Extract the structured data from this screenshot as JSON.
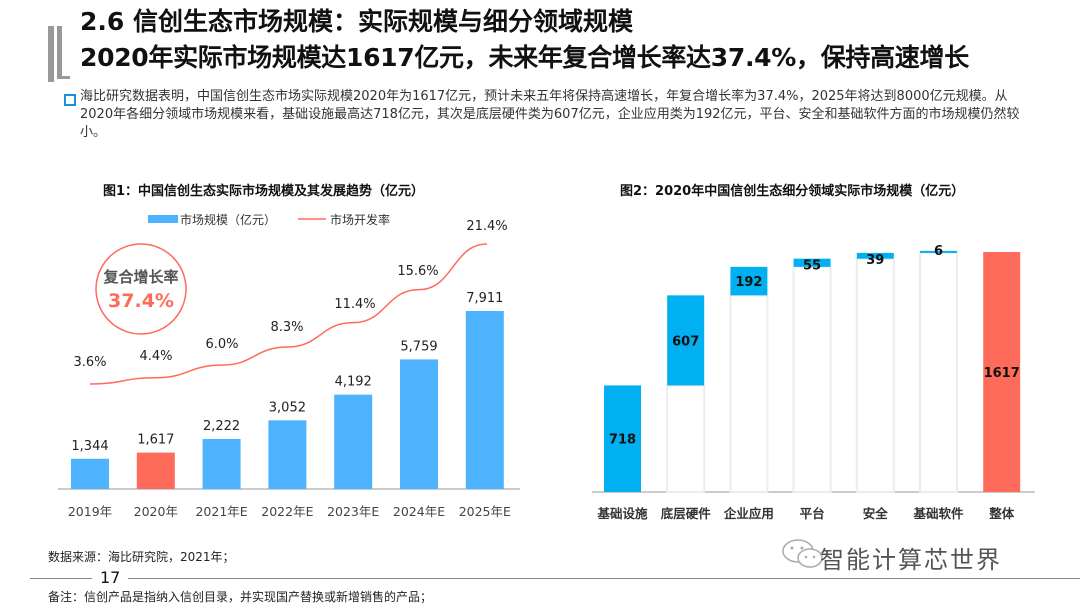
{
  "header": {
    "title_line1": "2.6 信创生态市场规模：实际规模与细分领域规模",
    "title_line2": "2020年实际市场规模达1617亿元，未来年复合增长率达37.4%，保持高速增长"
  },
  "summary": "海比研究数据表明，中国信创生态市场实际规模2020年为1617亿元，预计未来五年将保持高速增长，年复合增长率为37.4%，2025年将达到8000亿元规模。从2020年各细分领域市场规模来看，基础设施最高达718亿元，其次是底层硬件类为607亿元，企业应用类为192亿元，平台、安全和基础软件方面的市场规模仍然较小。",
  "colors": {
    "bar": "#4db3ff",
    "highlight": "#ff6b5a",
    "line": "#ff6b5a",
    "waterfall": "#00b0f0",
    "bullet": "#1a8fe0"
  },
  "chart_data": [
    {
      "type": "bar",
      "title": "图1：中国信创生态实际市场规模及其发展趋势（亿元）",
      "categories": [
        "2019年",
        "2020年",
        "2021年E",
        "2022年E",
        "2023年E",
        "2024年E",
        "2025年E"
      ],
      "series": [
        {
          "name": "市场规模（亿元）",
          "type": "bar",
          "values": [
            1344,
            1617,
            2222,
            3052,
            4192,
            5759,
            7911
          ],
          "labels": [
            "1,344",
            "1,617",
            "2,222",
            "3,052",
            "4,192",
            "5,759",
            "7,911"
          ],
          "highlight_index": 1
        },
        {
          "name": "市场开发率",
          "type": "line",
          "values": [
            3.6,
            4.4,
            6.0,
            8.3,
            11.4,
            15.6,
            21.4
          ],
          "labels": [
            "3.6%",
            "4.4%",
            "6.0%",
            "8.3%",
            "11.4%",
            "15.6%",
            "21.4%"
          ]
        }
      ],
      "annotation": {
        "label": "复合增长率",
        "value": "37.4%"
      },
      "legend_position": "top",
      "grid": false
    },
    {
      "type": "bar",
      "subtype": "waterfall",
      "title": "图2：2020年中国信创生态细分领域实际市场规模（亿元）",
      "categories": [
        "基础设施",
        "底层硬件",
        "企业应用",
        "平台",
        "安全",
        "基础软件",
        "整体"
      ],
      "values": [
        718,
        607,
        192,
        55,
        39,
        6,
        1617
      ],
      "labels": [
        "718",
        "607",
        "192",
        "55",
        "39",
        "6",
        "1617"
      ],
      "total_index": 6,
      "grid": false
    }
  ],
  "footer": {
    "source": "数据来源：海比研究院，2021年；",
    "page_number": "17",
    "note": "备注：信创产品是指纳入信创目录，并实现国产替换或新增销售的产品；",
    "watermark": "智能计算芯世界"
  }
}
